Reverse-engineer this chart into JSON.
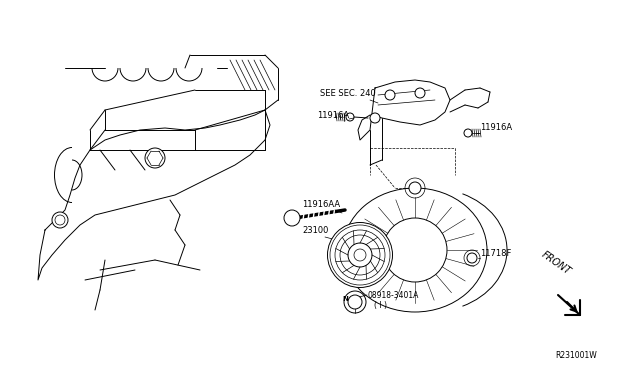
{
  "background_color": "#ffffff",
  "line_color": "#000000",
  "text_color": "#000000",
  "figure_width": 6.4,
  "figure_height": 3.72,
  "dpi": 100,
  "labels": {
    "see_sec": "SEE SEC. 240",
    "11916A_left": "11916A",
    "11916A_right": "11916A",
    "11916AA": "11916AA",
    "23100": "23100",
    "11718F": "11718F",
    "bolt_label_line1": "08918-3401A",
    "bolt_label_line2": "( I )",
    "N_symbol": "N",
    "front": "FRONT",
    "ref_num": "R231001W"
  },
  "font_size_labels": 6.0,
  "font_size_ref": 5.5,
  "lw_main": 0.7,
  "lw_thin": 0.5
}
